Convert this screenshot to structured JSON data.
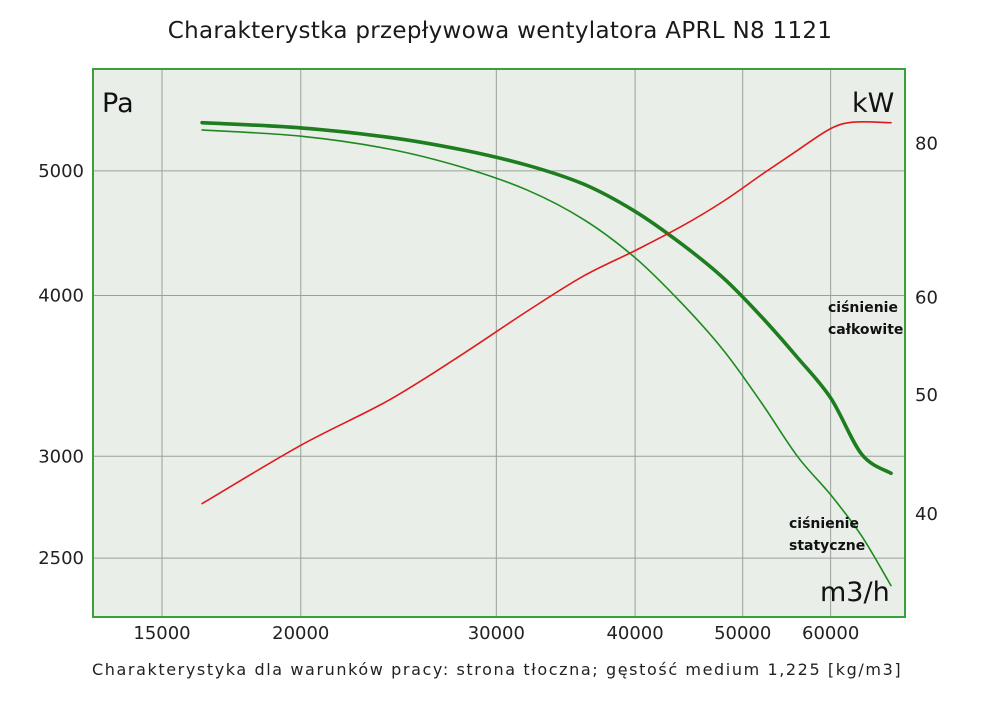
{
  "chart_data": {
    "type": "line",
    "title": "Charakterystka przepływowa wentylatora APRL N8 1121",
    "footnote": "Charakterystyka dla warunków pracy: strona tłoczna; gęstość medium 1,225 [kg/m3]",
    "x_scale": "log",
    "y_left_scale": "log",
    "y_right_scale": "log",
    "xlabel": "m3/h",
    "ylabel_left": "Pa",
    "ylabel_right": "kW",
    "x_ticks": [
      15000,
      20000,
      30000,
      40000,
      50000,
      60000
    ],
    "x_tick_labels": [
      "15000",
      "20000",
      "30000",
      "40000",
      "50000",
      "60000"
    ],
    "y_left_ticks": [
      2500,
      3000,
      4000,
      5000
    ],
    "y_left_tick_labels": [
      "2500",
      "3000",
      "4000",
      "5000"
    ],
    "y_right_ticks": [
      40,
      50,
      60,
      80
    ],
    "y_right_tick_labels": [
      "40",
      "50",
      "60",
      "80"
    ],
    "xlim": [
      13000,
      70000
    ],
    "ylim_left": [
      2250,
      6000
    ],
    "ylim_right": [
      33,
      92
    ],
    "grid": true,
    "background_color": "#e9eee9",
    "frame_color": "#3aa03a",
    "series": [
      {
        "name": "ciśnienie całkowite",
        "axis": "left",
        "color": "#1e7d1e",
        "stroke": "thick",
        "x": [
          16300,
          20000,
          24000,
          28000,
          32000,
          36000,
          40000,
          44000,
          48000,
          52000,
          56000,
          60000,
          64000,
          68000
        ],
        "y": [
          5450,
          5400,
          5310,
          5190,
          5050,
          4880,
          4650,
          4390,
          4130,
          3850,
          3580,
          3330,
          3010,
          2910
        ]
      },
      {
        "name": "ciśnienie statyczne",
        "axis": "left",
        "color": "#1e8a1e",
        "stroke": "thin",
        "x": [
          16300,
          20000,
          24000,
          28000,
          32000,
          36000,
          40000,
          44000,
          48000,
          52000,
          56000,
          60000,
          64000,
          68000
        ],
        "y": [
          5380,
          5320,
          5200,
          5030,
          4830,
          4580,
          4280,
          3950,
          3630,
          3300,
          3000,
          2800,
          2600,
          2380
        ]
      },
      {
        "name": "",
        "axis": "right",
        "color": "#e01a1a",
        "stroke": "thin",
        "x": [
          16300,
          20000,
          24000,
          28000,
          32000,
          36000,
          40000,
          44000,
          48000,
          52000,
          56000,
          60000,
          63000,
          68000
        ],
        "y": [
          40.8,
          45.5,
          49.5,
          54.0,
          58.5,
          62.5,
          65.5,
          68.5,
          71.8,
          75.5,
          79.0,
          82.3,
          83.3,
          83.2
        ]
      }
    ],
    "annotations": [
      {
        "lines": [
          "ciśnienie",
          "całkowite"
        ],
        "series": "ciśnienie całkowite"
      },
      {
        "lines": [
          "ciśnienie",
          "statyczne"
        ],
        "series": "ciśnienie statyczne"
      }
    ]
  }
}
